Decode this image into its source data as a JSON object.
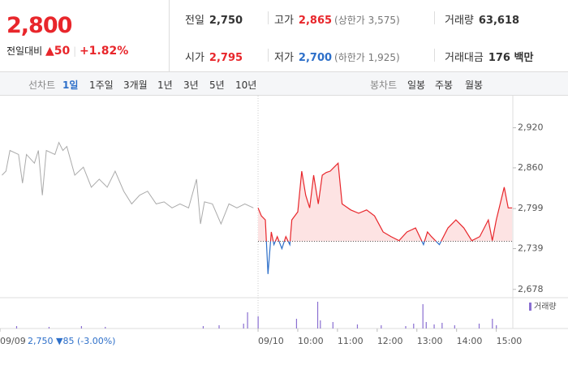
{
  "quote": {
    "price": "2,800",
    "change_label": "전일대비",
    "change": "▲50",
    "change_pct": "+1.82%"
  },
  "stats": [
    {
      "label": "전일",
      "value": "2,750"
    },
    {
      "label": "고가",
      "value": "2,865",
      "note": "(상한가 3,575)"
    },
    {
      "label": "거래량",
      "value": "63,618"
    },
    {
      "label": "시가",
      "value": "2,795"
    },
    {
      "label": "저가",
      "value": "2,700",
      "note": "(하한가 1,925)"
    },
    {
      "label": "거래대금",
      "value": "176 백만"
    }
  ],
  "tabs": {
    "line_label": "선차트",
    "line": [
      "1일",
      "1주일",
      "3개월",
      "1년",
      "3년",
      "5년",
      "10년"
    ],
    "candle_label": "봉차트",
    "candle": [
      "일봉",
      "주봉",
      "월봉"
    ]
  },
  "chart_data": {
    "type": "line",
    "xlim": [
      -390,
      385
    ],
    "ylim": [
      2668,
      2968
    ],
    "yticks": [
      {
        "value": 2920,
        "label": "2,920"
      },
      {
        "value": 2860,
        "label": "2,860"
      },
      {
        "value": 2799,
        "label": "2,799"
      },
      {
        "value": 2739,
        "label": "2,739"
      },
      {
        "value": 2678,
        "label": "2,678"
      }
    ],
    "xticks": [
      {
        "value": -390,
        "label": "09/09"
      },
      {
        "value": 0,
        "label": "09/10"
      },
      {
        "value": 60,
        "label": "10:00"
      },
      {
        "value": 120,
        "label": "11:00"
      },
      {
        "value": 180,
        "label": "12:00"
      },
      {
        "value": 240,
        "label": "13:00"
      },
      {
        "value": 300,
        "label": "14:00"
      },
      {
        "value": 360,
        "label": "15:00"
      }
    ],
    "prev_close_label": "2,750 ▼85 (-3.00%)",
    "baseline": 2750,
    "series": [
      {
        "color": "#aaaaaa",
        "x": [
          -387,
          -381,
          -375,
          -362,
          -356,
          -350,
          -338,
          -332,
          -326,
          -320,
          -307,
          -301,
          -295,
          -289,
          -277,
          -264,
          -252,
          -240,
          -228,
          -216,
          -203,
          -191,
          -179,
          -167,
          -154,
          -142,
          -130,
          -118,
          -105,
          -93,
          -87,
          -81,
          -69,
          -56,
          -44,
          -32,
          -20,
          -7
        ],
        "values": [
          2849,
          2855,
          2886,
          2880,
          2837,
          2880,
          2867,
          2886,
          2819,
          2886,
          2880,
          2898,
          2886,
          2892,
          2849,
          2861,
          2831,
          2843,
          2831,
          2855,
          2825,
          2806,
          2819,
          2825,
          2806,
          2809,
          2800,
          2806,
          2800,
          2843,
          2776,
          2809,
          2806,
          2776,
          2806,
          2800,
          2806,
          2800
        ]
      },
      {
        "color": "#e8262b",
        "down_color": "#2d6fc9",
        "fill": "#fde3e3",
        "x": [
          0,
          5,
          11,
          15,
          20,
          24,
          29,
          36,
          42,
          48,
          51,
          60,
          66,
          72,
          78,
          84,
          91,
          97,
          103,
          109,
          115,
          121,
          127,
          140,
          152,
          164,
          176,
          189,
          201,
          213,
          225,
          238,
          250,
          256,
          262,
          274,
          287,
          299,
          311,
          323,
          335,
          348,
          354,
          360,
          372,
          378,
          384
        ],
        "values": [
          2800,
          2788,
          2782,
          2701,
          2764,
          2745,
          2757,
          2739,
          2757,
          2745,
          2782,
          2794,
          2855,
          2819,
          2800,
          2849,
          2806,
          2849,
          2853,
          2855,
          2861,
          2867,
          2806,
          2797,
          2792,
          2797,
          2788,
          2764,
          2757,
          2751,
          2764,
          2770,
          2745,
          2764,
          2757,
          2745,
          2770,
          2782,
          2770,
          2751,
          2757,
          2782,
          2751,
          2782,
          2831,
          2800,
          2800
        ]
      }
    ],
    "volume": {
      "name": "거래량",
      "color": "#8a6fd1",
      "ylim": [
        0,
        38
      ],
      "x": [
        -365,
        -316,
        -267,
        -231,
        -83,
        -59,
        -22,
        -16,
        0,
        58,
        90,
        94,
        113,
        150,
        186,
        223,
        235,
        249,
        254,
        266,
        278,
        297,
        334,
        354,
        360
      ],
      "values": [
        3,
        2,
        3,
        2,
        3,
        4,
        6,
        20,
        15,
        12,
        33,
        10,
        8,
        5,
        4,
        3,
        6,
        30,
        8,
        5,
        7,
        4,
        6,
        12,
        4
      ]
    }
  }
}
